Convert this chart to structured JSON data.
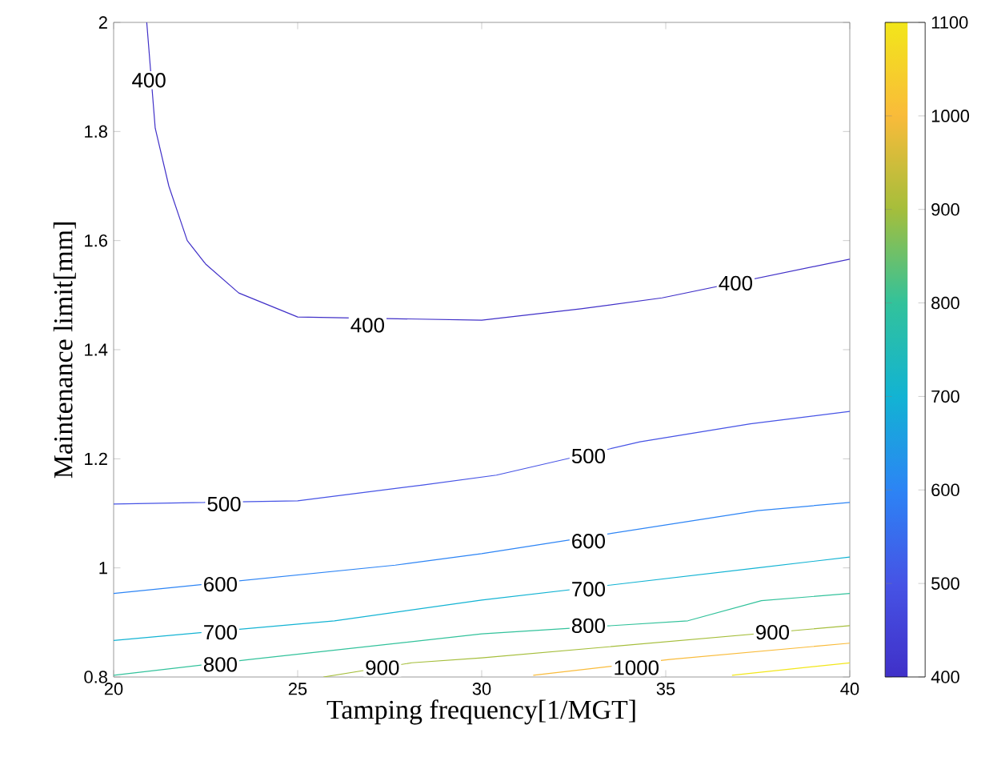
{
  "chart_data": {
    "type": "line",
    "xlabel": "Tamping frequency[1/MGT]",
    "ylabel": "Maintenance limit[mm]",
    "xlim": [
      20,
      40
    ],
    "ylim": [
      0.8,
      2
    ],
    "xticks": [
      20,
      25,
      30,
      35,
      40
    ],
    "yticks": [
      0.8,
      1,
      1.2,
      1.4,
      1.6,
      1.8,
      2
    ],
    "clim": [
      400,
      1100
    ],
    "cticks": [
      400,
      500,
      600,
      700,
      800,
      900,
      1000,
      1100
    ],
    "grid": false,
    "marker": "none",
    "line_style": "solid",
    "series": [
      {
        "color": "#4030c8",
        "x": [
          20.9,
          21.13,
          21.5,
          22.0,
          22.5,
          23.4,
          25,
          30,
          32.7,
          34.9,
          40
        ],
        "values": [
          2.0,
          1.806,
          1.7,
          1.6,
          1.557,
          1.504,
          1.46,
          1.454,
          1.475,
          1.495,
          1.566
        ]
      },
      {
        "color": "#4653e5",
        "x": [
          20,
          25,
          28.4,
          30.4,
          34.3,
          37.3,
          40
        ],
        "values": [
          1.117,
          1.123,
          1.152,
          1.17,
          1.231,
          1.264,
          1.287
        ]
      },
      {
        "color": "#2c84f5",
        "x": [
          20,
          27.65,
          30,
          37.5,
          40
        ],
        "values": [
          0.953,
          1.005,
          1.026,
          1.105,
          1.12
        ]
      },
      {
        "color": "#12b3d3",
        "x": [
          20,
          26,
          30,
          37.5,
          40
        ],
        "values": [
          0.867,
          0.903,
          0.941,
          1.0,
          1.02
        ]
      },
      {
        "color": "#32c29b",
        "x": [
          20,
          23.7,
          30,
          35.6,
          37.6,
          40
        ],
        "values": [
          0.803,
          0.832,
          0.879,
          0.903,
          0.94,
          0.953
        ]
      },
      {
        "color": "#a5be3b",
        "x": [
          25.7,
          28.1,
          30,
          37.9,
          40
        ],
        "values": [
          0.8,
          0.826,
          0.835,
          null,
          0.894
        ]
      },
      {
        "color": "#f9bb3a",
        "x": [
          31.4,
          35.1,
          40
        ],
        "values": [
          0.803,
          0.832,
          0.862
        ]
      },
      {
        "color": "#f2e61a",
        "x": [
          36.8,
          40
        ],
        "values": [
          0.803,
          0.826
        ]
      }
    ],
    "annotations": [
      {
        "text": "400",
        "x": 20.96,
        "y": 1.894
      },
      {
        "text": "400",
        "x": 26.9,
        "y": 1.445
      },
      {
        "text": "400",
        "x": 36.9,
        "y": 1.522
      },
      {
        "text": "500",
        "x": 23.0,
        "y": 1.117
      },
      {
        "text": "500",
        "x": 32.9,
        "y": 1.205
      },
      {
        "text": "600",
        "x": 22.9,
        "y": 0.97
      },
      {
        "text": "600",
        "x": 32.9,
        "y": 1.049
      },
      {
        "text": "700",
        "x": 22.9,
        "y": 0.882
      },
      {
        "text": "700",
        "x": 32.9,
        "y": 0.961
      },
      {
        "text": "800",
        "x": 22.9,
        "y": 0.823
      },
      {
        "text": "800",
        "x": 32.9,
        "y": 0.894
      },
      {
        "text": "900",
        "x": 27.3,
        "y": 0.817
      },
      {
        "text": "900",
        "x": 37.9,
        "y": 0.882
      },
      {
        "text": "1000",
        "x": 34.2,
        "y": 0.817
      }
    ]
  }
}
